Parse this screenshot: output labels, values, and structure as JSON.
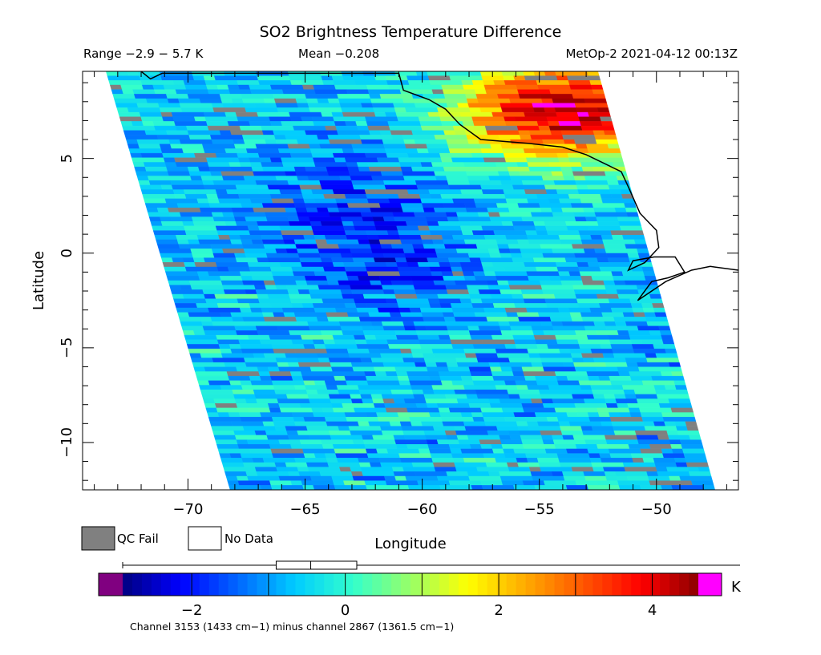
{
  "header": {
    "title": "SO2 Brightness Temperature Difference",
    "range": "Range −2.9 − 5.7 K",
    "mean": "Mean −0.208",
    "source": "MetOp-2 2021-04-12 00:13Z"
  },
  "axes": {
    "ylabel": "Latitude",
    "xlabel": "Longitude",
    "xticks": [
      {
        "value": -70,
        "label": "−70"
      },
      {
        "value": -65,
        "label": "−65"
      },
      {
        "value": -60,
        "label": "−60"
      },
      {
        "value": -55,
        "label": "−55"
      },
      {
        "value": -50,
        "label": "−50"
      }
    ],
    "yticks": [
      {
        "value": 5,
        "label": "5"
      },
      {
        "value": 0,
        "label": "0"
      },
      {
        "value": -5,
        "label": "−5"
      },
      {
        "value": -10,
        "label": "−10"
      }
    ],
    "xlim": [
      -74.5,
      -46.5
    ],
    "ylim": [
      -12.5,
      9.6
    ]
  },
  "legend": {
    "qc_fail": "QC Fail",
    "no_data": "No Data",
    "qc_fail_color": "#808080",
    "no_data_color": "#ffffff"
  },
  "colorbar": {
    "unit": "K",
    "ticks": [
      {
        "value": -2,
        "label": "−2"
      },
      {
        "value": 0,
        "label": "0"
      },
      {
        "value": 2,
        "label": "2"
      },
      {
        "value": 4,
        "label": "4"
      }
    ],
    "range": [
      -2.9,
      4.6
    ],
    "under_color": "#800080",
    "over_color": "#ff00ff",
    "colors": [
      "#00007f",
      "#0000ff",
      "#0066ff",
      "#00ccff",
      "#33ffcc",
      "#99ff66",
      "#ffff00",
      "#ffaa00",
      "#ff5500",
      "#ff0000",
      "#8b0000"
    ],
    "boxplot": {
      "min": -2.9,
      "q1": -0.9,
      "median": -0.45,
      "q3": 0.15,
      "max": 5.7
    },
    "caption": "Channel 3153 (1433 cm−1) minus channel 2867 (1361.5 cm−1)"
  },
  "map_data": {
    "type": "heatmap",
    "swath_corners": [
      [
        -73.5,
        9.6
      ],
      [
        -52.5,
        9.6
      ],
      [
        -47.5,
        -12.5
      ],
      [
        -68.2,
        -12.5
      ]
    ],
    "hotspot": {
      "lon": -54,
      "lat": 7.5,
      "peak_k": 4.6
    },
    "coastline": [
      [
        -72.0,
        9.6
      ],
      [
        -71.6,
        9.2
      ],
      [
        -71.1,
        9.5
      ],
      [
        -61.0,
        9.5
      ],
      [
        -60.8,
        8.6
      ],
      [
        -59.7,
        8.1
      ],
      [
        -59.0,
        7.6
      ],
      [
        -58.4,
        6.8
      ],
      [
        -57.5,
        6.0
      ],
      [
        -55.5,
        5.8
      ],
      [
        -54.0,
        5.6
      ],
      [
        -53.0,
        5.2
      ],
      [
        -52.0,
        4.6
      ],
      [
        -51.5,
        4.3
      ],
      [
        -51.2,
        3.5
      ],
      [
        -50.7,
        2.1
      ],
      [
        -50.0,
        1.2
      ],
      [
        -49.9,
        0.3
      ],
      [
        -50.5,
        -0.5
      ],
      [
        -51.2,
        -0.9
      ],
      [
        -51.0,
        -0.4
      ],
      [
        -50.1,
        -0.2
      ],
      [
        -49.2,
        -0.2
      ],
      [
        -48.8,
        -1.0
      ],
      [
        -49.5,
        -1.3
      ],
      [
        -50.2,
        -1.5
      ],
      [
        -50.8,
        -2.5
      ],
      [
        -49.6,
        -1.5
      ],
      [
        -48.5,
        -0.9
      ],
      [
        -47.7,
        -0.7
      ],
      [
        -46.5,
        -0.9
      ]
    ]
  }
}
